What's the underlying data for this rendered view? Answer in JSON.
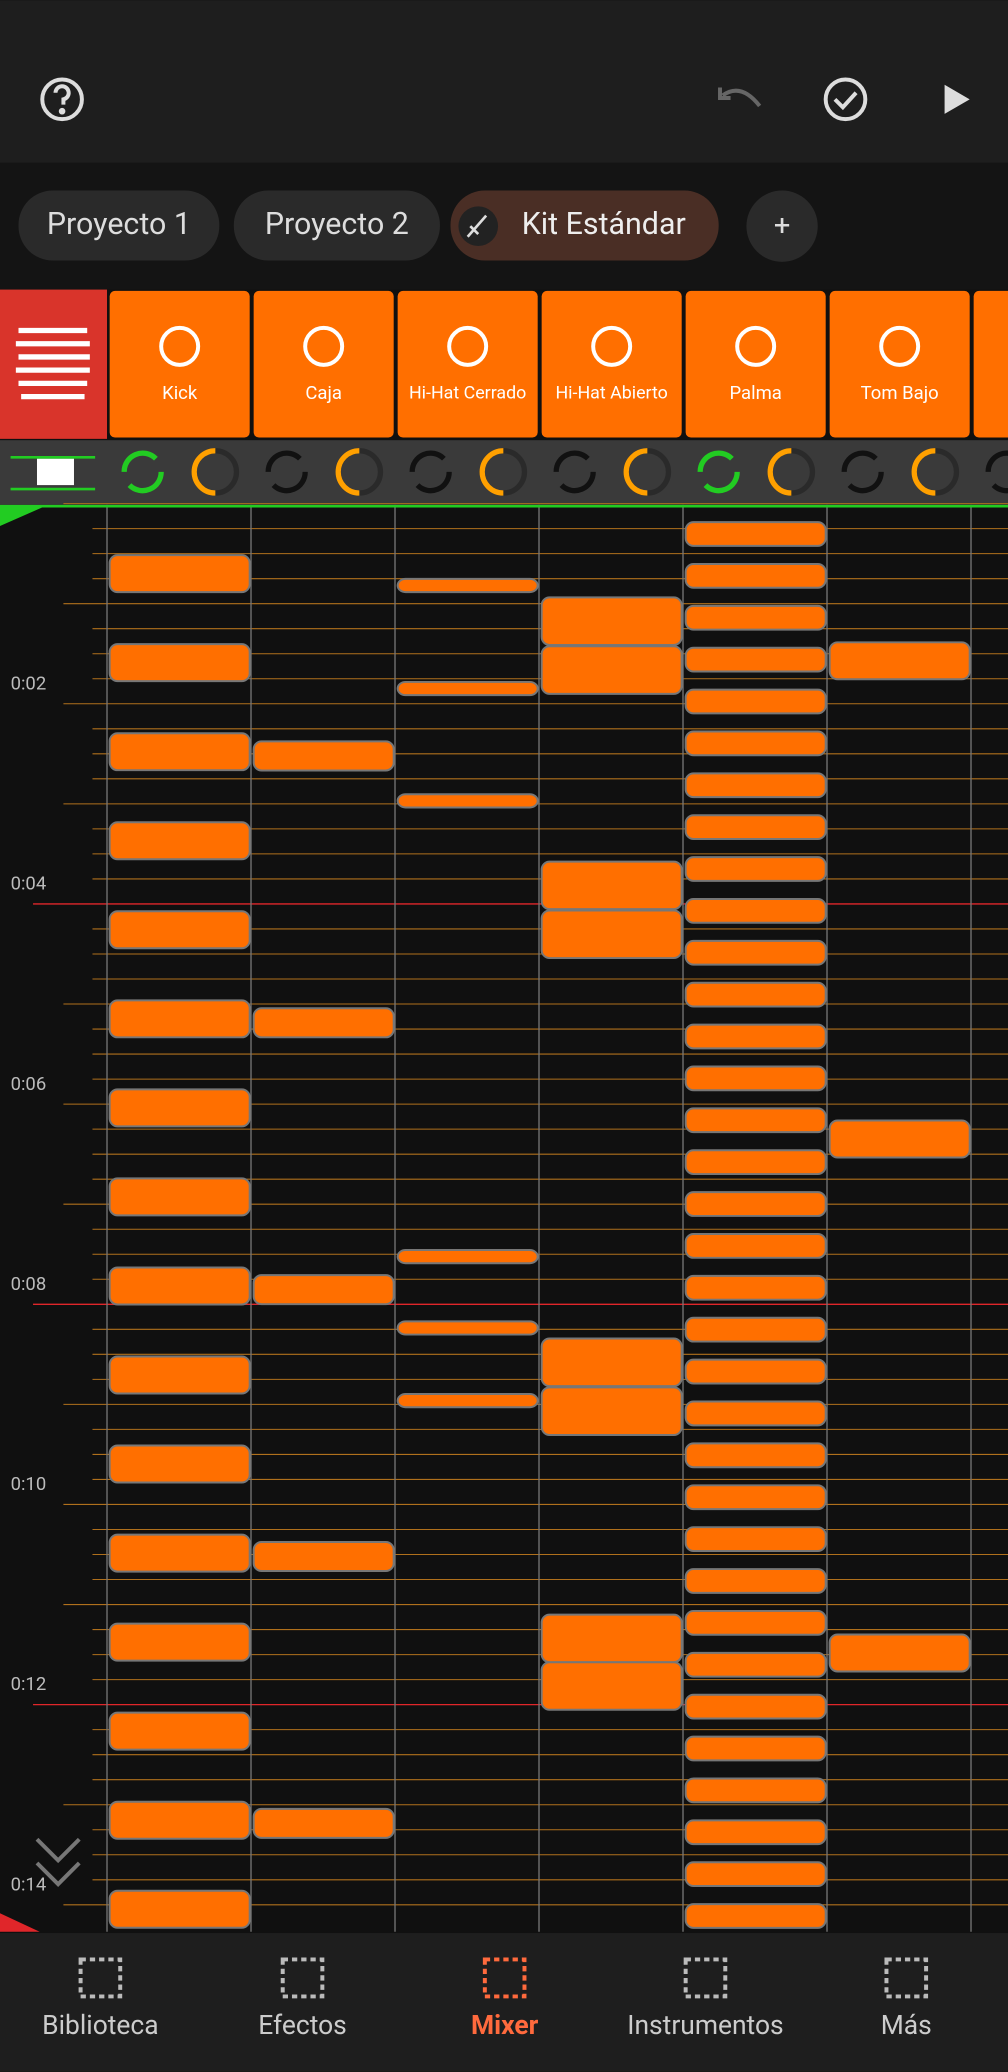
{
  "tabs": [
    "Proyecto 1",
    "Proyecto 2",
    "Kit Estándar",
    "+"
  ],
  "instruments": [
    "Kick",
    "Caja",
    "Hi-Hat Cerrado",
    "Hi-Hat Abierto",
    "Palma",
    "Tom Bajo"
  ],
  "timeline": [
    "0:02",
    "0:04",
    "0:06",
    "0:08",
    "0:10",
    "0:12",
    "0:14"
  ],
  "nav": [
    "Biblioteca",
    "Efectos",
    "Mixer",
    "Instrumentos",
    "Más"
  ]
}
